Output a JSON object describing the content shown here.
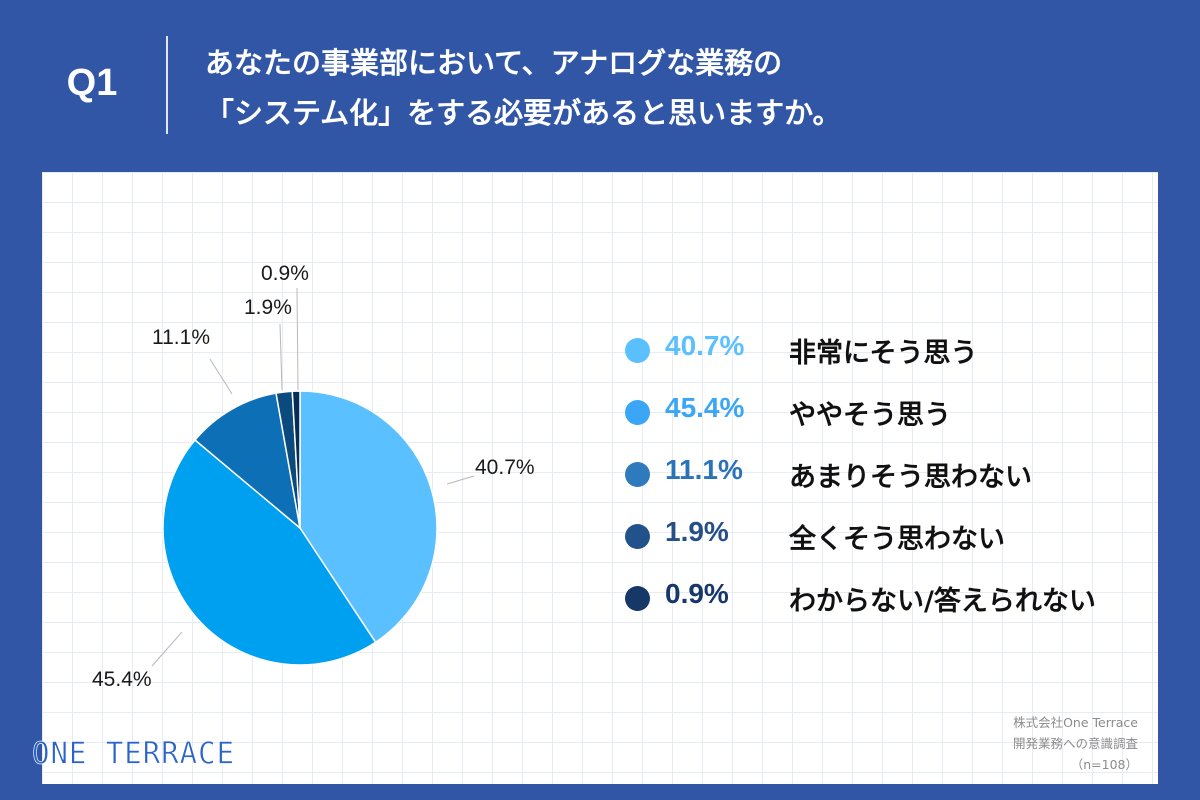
{
  "header": {
    "q_label": "Q1",
    "question_line1": "あなたの事業部において、アナログな業務の",
    "question_line2": "「システム化」をする必要があると思いますか。"
  },
  "chart_data": {
    "type": "pie",
    "categories": [
      "非常にそう思う",
      "ややそう思う",
      "あまりそう思わない",
      "全くそう思わない",
      "わからない/答えられない"
    ],
    "values": [
      40.7,
      45.4,
      11.1,
      1.9,
      0.9
    ],
    "data_labels": [
      "40.7%",
      "45.4%",
      "11.1%",
      "1.9%",
      "0.9%"
    ],
    "colors": [
      "#5bc0ff",
      "#00a0f0",
      "#0d70b6",
      "#0a4a7c",
      "#082d55"
    ],
    "legend_pct_colors": [
      "#5bc0ff",
      "#3aa6f5",
      "#2a73b8",
      "#254f86",
      "#17376b"
    ],
    "legend_dot_colors": [
      "#5bc0ff",
      "#3aa6f5",
      "#2f79bd",
      "#22528a",
      "#153866"
    ],
    "legend_position": "right",
    "start_angle_deg": 0,
    "direction": "clockwise"
  },
  "legend": {
    "items": [
      {
        "pct": "40.7%",
        "label": "非常にそう思う"
      },
      {
        "pct": "45.4%",
        "label": "ややそう思う"
      },
      {
        "pct": "11.1%",
        "label": "あまりそう思わない"
      },
      {
        "pct": "1.9%",
        "label": "全くそう思わない"
      },
      {
        "pct": "0.9%",
        "label": "わからない/答えられない"
      }
    ]
  },
  "footer": {
    "brand": "ONE TERRACE",
    "source_line1": "株式会社One Terrace",
    "source_line2": "開発業務への意識調査",
    "source_line3": "（n=108）"
  }
}
